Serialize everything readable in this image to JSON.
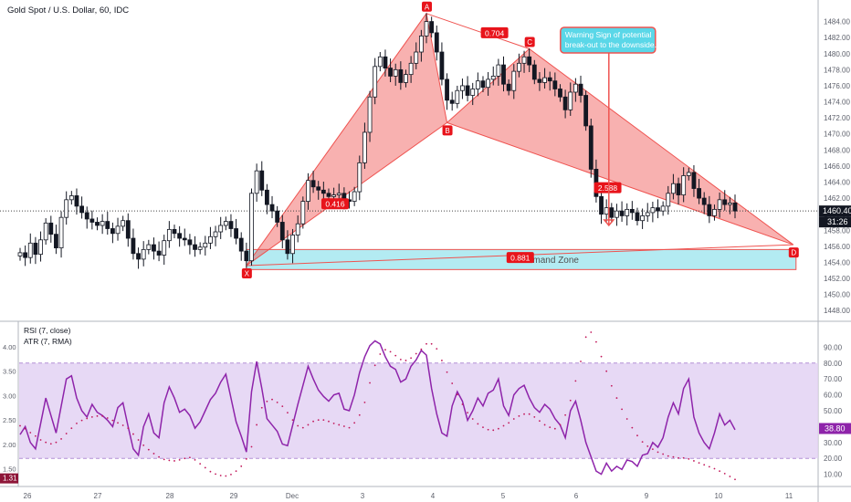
{
  "chart_data": {
    "type": "line",
    "title": "Gold Spot / U.S. Dollar, 60, IDC",
    "xlabel": "",
    "ylabel": "",
    "price_panel": {
      "ylim": [
        1447,
        1486
      ],
      "y_ticks": [
        1448,
        1450,
        1452,
        1454,
        1456,
        1458,
        1460,
        1462,
        1464,
        1466,
        1468,
        1470,
        1472,
        1474,
        1476,
        1478,
        1480,
        1482,
        1484
      ],
      "x_ticks": [
        "26",
        "27",
        "28",
        "29",
        "Dec",
        "3",
        "4",
        "5",
        "6",
        "9",
        "10",
        "11"
      ],
      "close_series": [
        1455.2,
        1454.6,
        1456.4,
        1455.0,
        1456.8,
        1458.9,
        1457.5,
        1455.8,
        1459.6,
        1461.8,
        1462.3,
        1461.0,
        1460.2,
        1459.4,
        1459.0,
        1458.6,
        1459.1,
        1458.2,
        1457.6,
        1458.5,
        1459.2,
        1457.0,
        1455.1,
        1454.4,
        1455.6,
        1456.2,
        1455.4,
        1454.9,
        1456.7,
        1458.1,
        1457.6,
        1457.0,
        1456.8,
        1456.2,
        1455.6,
        1455.9,
        1456.4,
        1457.2,
        1457.8,
        1458.6,
        1459.1,
        1458.2,
        1457.0,
        1455.4,
        1454.2,
        1462.6,
        1465.4,
        1463.0,
        1461.2,
        1460.4,
        1459.0,
        1456.8,
        1455.1,
        1457.4,
        1458.8,
        1461.6,
        1464.2,
        1463.4,
        1463.0,
        1462.6,
        1462.2,
        1462.4,
        1462.6,
        1461.8,
        1461.6,
        1462.8,
        1466.4,
        1470.2,
        1474.6,
        1478.4,
        1479.6,
        1478.2,
        1477.2,
        1478.0,
        1476.4,
        1477.4,
        1478.8,
        1480.2,
        1482.2,
        1484.0,
        1482.6,
        1480.2,
        1476.8,
        1474.2,
        1473.8,
        1475.4,
        1476.0,
        1474.8,
        1475.6,
        1476.6,
        1475.8,
        1476.8,
        1477.2,
        1478.6,
        1476.2,
        1475.4,
        1477.8,
        1478.8,
        1479.6,
        1478.6,
        1476.8,
        1476.4,
        1477.0,
        1476.6,
        1475.6,
        1474.6,
        1473.0,
        1475.2,
        1476.2,
        1474.8,
        1471.0,
        1465.6,
        1462.2,
        1460.0,
        1460.8,
        1459.6,
        1460.4,
        1459.8,
        1460.6,
        1460.2,
        1459.2,
        1459.8,
        1460.2,
        1460.8,
        1460.4,
        1461.0,
        1462.6,
        1463.8,
        1462.4,
        1464.8,
        1465.2,
        1463.2,
        1462.0,
        1461.2,
        1459.8,
        1460.6,
        1461.8,
        1461.2,
        1461.4,
        1460.4
      ],
      "last_price": "1460.40",
      "countdown": "31:26",
      "harmonic_points": [
        {
          "label": "X",
          "x_index": 44,
          "price": 1453.6
        },
        {
          "label": "A",
          "x_index": 79,
          "price": 1485.0
        },
        {
          "label": "B",
          "x_index": 83,
          "price": 1471.4
        },
        {
          "label": "C",
          "x_index": 99,
          "price": 1480.6
        },
        {
          "label": "D",
          "x_index": 145,
          "price": 1456.2
        }
      ],
      "ratios": [
        {
          "text": "0.416",
          "x_index": 60,
          "price": 1461.3
        },
        {
          "text": "0.704",
          "x_index": 91,
          "price": 1482.6
        },
        {
          "text": "2.588",
          "x_index": 113,
          "price": 1463.3
        },
        {
          "text": "0.881",
          "x_index": 96,
          "price": 1454.6
        }
      ],
      "demand_zone": {
        "label": "Demand Zone",
        "from_index": 44,
        "to_index": 145,
        "top": 1455.6,
        "bottom": 1453.1
      },
      "annotation": {
        "text_lines": [
          "Warning Sign of potential",
          "break-out to the downside."
        ],
        "arrow_from_index": 115,
        "arrow_to_price": 1458.6
      }
    },
    "indicator_panel": {
      "legend": [
        "RSI (7, close)",
        "ATR (7, RMA)"
      ],
      "left_ticks": [
        "4.00",
        "3.50",
        "3.00",
        "2.50",
        "2.00",
        "1.50"
      ],
      "right_ticks": [
        "90.00",
        "80.00",
        "70.00",
        "60.00",
        "50.00",
        "40.00",
        "30.00",
        "20.00",
        "10.00"
      ],
      "left_label": "1.31",
      "right_label": "38.80",
      "rsi_band": [
        20,
        80
      ],
      "rsi": [
        35,
        40,
        30,
        26,
        42,
        58,
        47,
        36,
        53,
        70,
        72,
        58,
        50,
        46,
        54,
        49,
        47,
        44,
        40,
        52,
        55,
        40,
        26,
        22,
        40,
        48,
        36,
        33,
        55,
        65,
        58,
        49,
        51,
        47,
        39,
        43,
        50,
        57,
        61,
        68,
        73,
        58,
        43,
        34,
        24,
        62,
        81,
        64,
        45,
        41,
        37,
        29,
        28,
        41,
        54,
        66,
        78,
        70,
        63,
        59,
        56,
        60,
        61,
        51,
        50,
        60,
        74,
        84,
        91,
        94,
        92,
        84,
        78,
        76,
        68,
        70,
        78,
        82,
        88,
        85,
        64,
        48,
        36,
        34,
        53,
        62,
        56,
        44,
        50,
        58,
        53,
        61,
        63,
        70,
        53,
        47,
        60,
        64,
        66,
        58,
        52,
        49,
        54,
        51,
        45,
        41,
        33,
        50,
        56,
        44,
        30,
        21,
        12,
        10,
        17,
        12,
        15,
        13,
        19,
        18,
        15,
        22,
        23,
        30,
        27,
        33,
        46,
        55,
        48,
        64,
        70,
        46,
        36,
        30,
        26,
        36,
        48,
        41,
        44,
        38
      ],
      "atr_y_left": [
        2.38,
        2.32,
        2.24,
        2.17,
        2.09,
        2.04,
        2.01,
        2.04,
        2.11,
        2.22,
        2.33,
        2.43,
        2.49,
        2.53,
        2.56,
        2.58,
        2.58,
        2.54,
        2.49,
        2.44,
        2.39,
        2.33,
        2.21,
        2.09,
        1.98,
        1.89,
        1.81,
        1.74,
        1.69,
        1.67,
        1.66,
        1.68,
        1.71,
        1.73,
        1.68,
        1.6,
        1.52,
        1.44,
        1.39,
        1.36,
        1.35,
        1.38,
        1.45,
        1.55,
        1.7,
        1.95,
        2.4,
        2.75,
        2.88,
        2.92,
        2.86,
        2.78,
        2.65,
        2.5,
        2.38,
        2.34,
        2.4,
        2.47,
        2.5,
        2.5,
        2.47,
        2.43,
        2.4,
        2.37,
        2.34,
        2.44,
        2.6,
        2.86,
        3.26,
        3.62,
        3.85,
        3.94,
        3.9,
        3.82,
        3.74,
        3.72,
        3.77,
        3.86,
        3.95,
        4.06,
        4.06,
        3.96,
        3.72,
        3.48,
        3.25,
        3.02,
        2.82,
        2.65,
        2.52,
        2.42,
        2.35,
        2.3,
        2.29,
        2.32,
        2.38,
        2.44,
        2.52,
        2.58,
        2.62,
        2.62,
        2.56,
        2.48,
        2.4,
        2.35,
        2.32,
        2.4,
        2.6,
        2.9,
        3.3,
        3.7,
        4.2,
        4.3,
        4.1,
        3.8,
        3.5,
        3.2,
        2.95,
        2.72,
        2.52,
        2.34,
        2.18,
        2.05,
        1.96,
        1.9,
        1.84,
        1.8,
        1.76,
        1.74,
        1.72,
        1.72,
        1.7,
        1.66,
        1.62,
        1.58,
        1.54,
        1.5,
        1.45,
        1.4,
        1.34,
        1.28
      ]
    }
  }
}
